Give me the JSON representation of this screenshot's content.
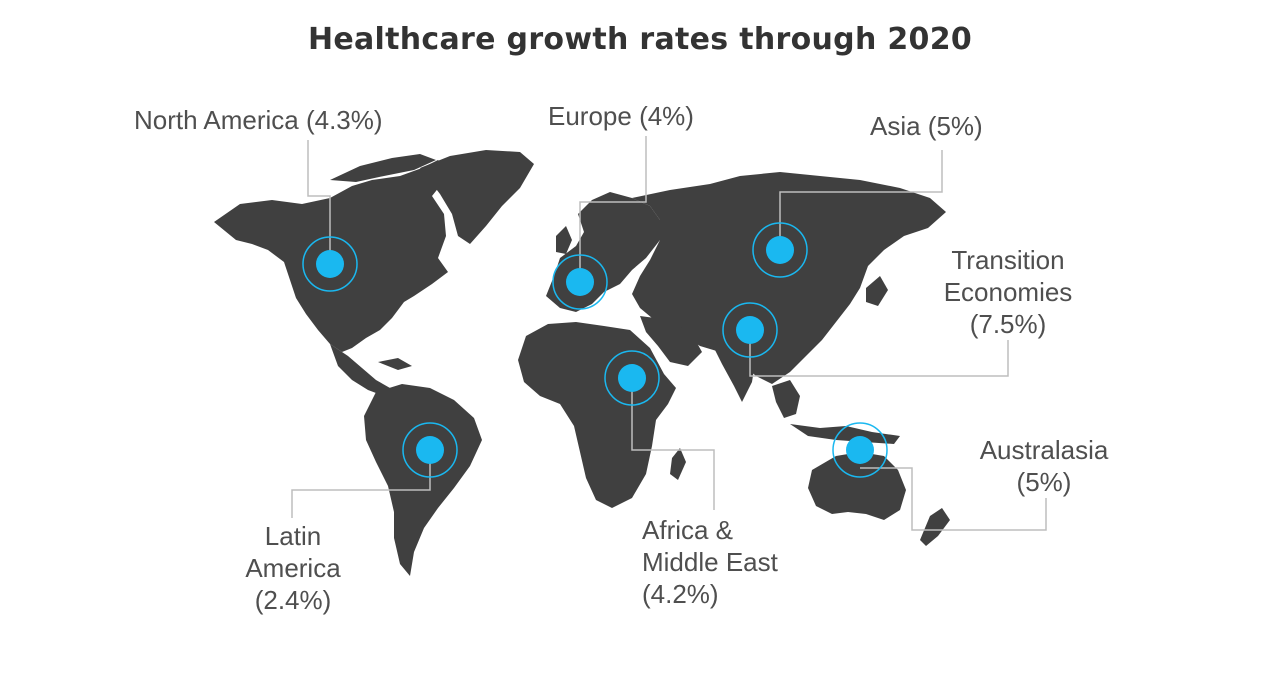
{
  "title": "Healthcare growth rates through 2020",
  "colors": {
    "land": "#404040",
    "marker": "#1ab8f0",
    "ring": "#1ab8f0",
    "leader": "#bdbdbd",
    "title": "#333333",
    "label": "#4f4f4f"
  },
  "regions": [
    {
      "id": "north-america",
      "lines": [
        "North America (4.3%)"
      ]
    },
    {
      "id": "europe",
      "lines": [
        "Europe (4%)"
      ]
    },
    {
      "id": "asia",
      "lines": [
        "Asia (5%)"
      ]
    },
    {
      "id": "transition-economies",
      "lines": [
        "Transition",
        "Economies",
        "(7.5%)"
      ]
    },
    {
      "id": "australasia",
      "lines": [
        "Australasia",
        "(5%)"
      ]
    },
    {
      "id": "africa-middle-east",
      "lines": [
        "Africa &",
        "Middle East",
        "(4.2%)"
      ]
    },
    {
      "id": "latin-america",
      "lines": [
        "Latin",
        "America",
        "(2.4%)"
      ]
    }
  ]
}
